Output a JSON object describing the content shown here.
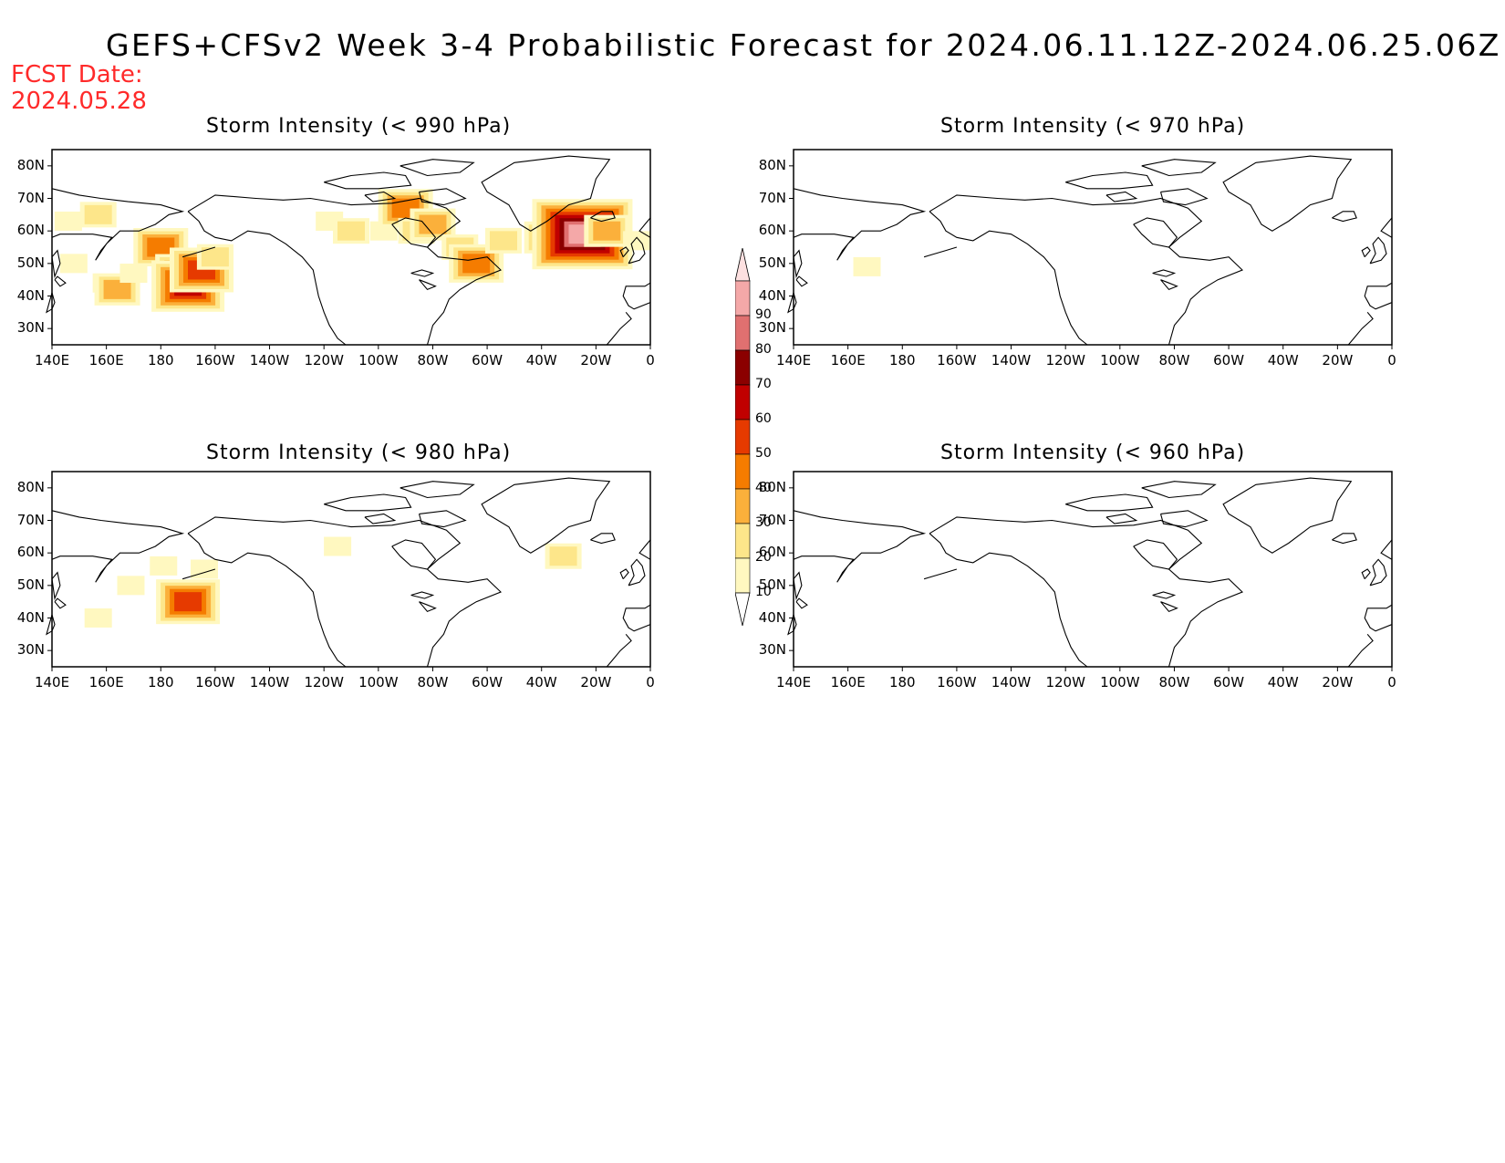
{
  "title": "GEFS+CFSv2 Week 3-4 Probabilistic Forecast for 2024.06.11.12Z-2024.06.25.06Z",
  "fcst_date": {
    "label": "FCST Date:",
    "value": "2024.05.28"
  },
  "lat_labels": [
    "80N",
    "70N",
    "60N",
    "50N",
    "40N",
    "30N"
  ],
  "lon_labels": [
    "140E",
    "160E",
    "180",
    "160W",
    "140W",
    "120W",
    "100W",
    "80W",
    "60W",
    "40W",
    "20W",
    "0"
  ],
  "colors": {
    "10": "#fff8c0",
    "20": "#fde68a",
    "30": "#fbb03b",
    "40": "#f57c00",
    "50": "#e63a00",
    "60": "#c00000",
    "70": "#8b0000",
    "80": "#e07070",
    "90": "#f4a8a8",
    "90plus": "#fde0e0",
    "coast": "#000000",
    "text": "#000000",
    "fcst": "#ff2a2a"
  },
  "colorbar": {
    "levels": [
      "10",
      "20",
      "30",
      "40",
      "50",
      "60",
      "70",
      "80",
      "90"
    ]
  },
  "panels": [
    {
      "id": "p990",
      "title": "Storm Intensity (< 990 hPa)",
      "regions": [
        {
          "lon": 146,
          "lat": 63,
          "lvl": 1
        },
        {
          "lon": 148,
          "lat": 50,
          "lvl": 1
        },
        {
          "lon": 157,
          "lat": 65,
          "lvl": 2
        },
        {
          "lon": 160,
          "lat": 44,
          "lvl": 1
        },
        {
          "lon": 164,
          "lat": 42,
          "lvl": 3
        },
        {
          "lon": 170,
          "lat": 47,
          "lvl": 1
        },
        {
          "lon": 180,
          "lat": 55,
          "lvl": 4
        },
        {
          "lon": 188,
          "lat": 47,
          "lvl": 4
        },
        {
          "lon": 190,
          "lat": 43,
          "lvl": 6
        },
        {
          "lon": 195,
          "lat": 48,
          "lvl": 5
        },
        {
          "lon": 200,
          "lat": 52,
          "lvl": 2
        },
        {
          "lon": 242,
          "lat": 63,
          "lvl": 1
        },
        {
          "lon": 250,
          "lat": 60,
          "lvl": 2
        },
        {
          "lon": 262,
          "lat": 60,
          "lvl": 1
        },
        {
          "lon": 270,
          "lat": 67,
          "lvl": 4
        },
        {
          "lon": 274,
          "lat": 60,
          "lvl": 2
        },
        {
          "lon": 280,
          "lat": 62,
          "lvl": 3
        },
        {
          "lon": 290,
          "lat": 55,
          "lvl": 2
        },
        {
          "lon": 296,
          "lat": 50,
          "lvl": 4
        },
        {
          "lon": 306,
          "lat": 57,
          "lvl": 2
        },
        {
          "lon": 322,
          "lat": 58,
          "lvl": 3
        },
        {
          "lon": 332,
          "lat": 58,
          "lvl": 5
        },
        {
          "lon": 335,
          "lat": 59,
          "lvl": 9
        },
        {
          "lon": 344,
          "lat": 60,
          "lvl": 3
        },
        {
          "lon": 355,
          "lat": 57,
          "lvl": 1
        }
      ]
    },
    {
      "id": "p970",
      "title": "Storm Intensity (< 970 hPa)",
      "regions": [
        {
          "lon": 167,
          "lat": 49,
          "lvl": 1
        }
      ]
    },
    {
      "id": "p980",
      "title": "Storm Intensity (< 980 hPa)",
      "regions": [
        {
          "lon": 181,
          "lat": 56,
          "lvl": 1
        },
        {
          "lon": 190,
          "lat": 45,
          "lvl": 5
        },
        {
          "lon": 196,
          "lat": 55,
          "lvl": 1
        },
        {
          "lon": 245,
          "lat": 62,
          "lvl": 1
        },
        {
          "lon": 328,
          "lat": 59,
          "lvl": 2
        },
        {
          "lon": 169,
          "lat": 50,
          "lvl": 1
        },
        {
          "lon": 157,
          "lat": 40,
          "lvl": 1
        }
      ]
    },
    {
      "id": "p960",
      "title": "Storm Intensity (< 960 hPa)",
      "regions": []
    }
  ]
}
